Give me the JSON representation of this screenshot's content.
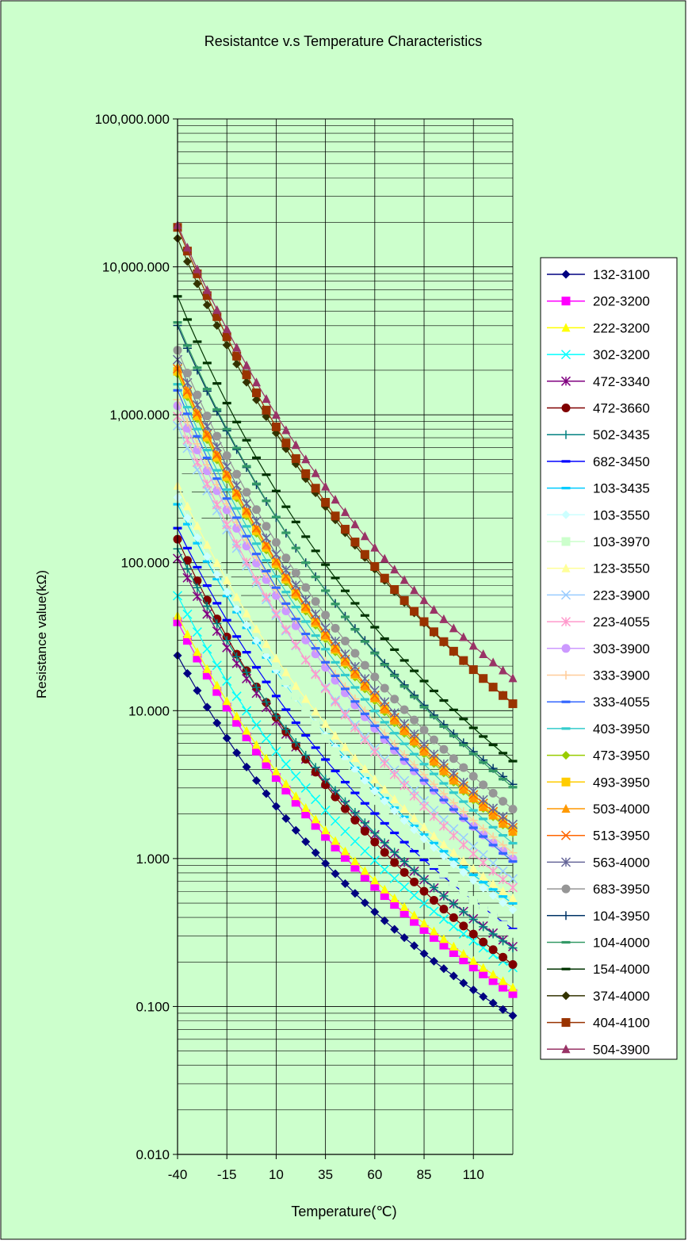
{
  "chart_data": {
    "type": "line",
    "title": "Resistantce v.s Temperature Characteristics",
    "xlabel": "Temperature(℃)",
    "ylabel": "Resistance value(kΩ)",
    "x_ticks": [
      "-40",
      "-15",
      "10",
      "35",
      "60",
      "85",
      "110"
    ],
    "y_ticks": [
      "0.010",
      "0.100",
      "1.000",
      "10.000",
      "100.000",
      "1,000.000",
      "10,000.000",
      "100,000.000"
    ],
    "xlim": [
      -40,
      130
    ],
    "ylim": [
      0.01,
      100000
    ],
    "yscale": "log",
    "grid": true,
    "legend": "right",
    "background": "#ccffcc",
    "x": [
      -40,
      -35,
      -30,
      -25,
      -20,
      -15,
      -10,
      -5,
      0,
      5,
      10,
      15,
      20,
      25,
      30,
      35,
      40,
      45,
      50,
      55,
      60,
      65,
      70,
      75,
      80,
      85,
      90,
      95,
      100,
      105,
      110,
      115,
      120,
      125,
      130
    ],
    "series": [
      {
        "name": "132-3100",
        "color": "#000080",
        "marker": "diamond",
        "r25": 1.3,
        "b": 3100
      },
      {
        "name": "202-3200",
        "color": "#ff00ff",
        "marker": "square",
        "r25": 2.0,
        "b": 3200
      },
      {
        "name": "222-3200",
        "color": "#ffff00",
        "marker": "triangle",
        "r25": 2.2,
        "b": 3200
      },
      {
        "name": "302-3200",
        "color": "#00ffff",
        "marker": "x",
        "r25": 3.0,
        "b": 3200
      },
      {
        "name": "472-3340",
        "color": "#800080",
        "marker": "star",
        "r25": 4.7,
        "b": 3340
      },
      {
        "name": "472-3660",
        "color": "#800000",
        "marker": "circle",
        "r25": 4.7,
        "b": 3660
      },
      {
        "name": "502-3435",
        "color": "#008080",
        "marker": "plus",
        "r25": 5.0,
        "b": 3435
      },
      {
        "name": "682-3450",
        "color": "#0000ff",
        "marker": "dash",
        "r25": 6.8,
        "b": 3450
      },
      {
        "name": "103-3435",
        "color": "#00ccff",
        "marker": "dash",
        "r25": 10,
        "b": 3435
      },
      {
        "name": "103-3550",
        "color": "#ccffff",
        "marker": "diamond",
        "r25": 10,
        "b": 3550
      },
      {
        "name": "103-3970",
        "color": "#ccffcc",
        "marker": "square",
        "r25": 10,
        "b": 3970
      },
      {
        "name": "123-3550",
        "color": "#ffff99",
        "marker": "triangle",
        "r25": 12,
        "b": 3550
      },
      {
        "name": "223-3900",
        "color": "#99ccff",
        "marker": "x",
        "r25": 22,
        "b": 3900
      },
      {
        "name": "223-4055",
        "color": "#ff99cc",
        "marker": "star",
        "r25": 22,
        "b": 4055
      },
      {
        "name": "303-3900",
        "color": "#cc99ff",
        "marker": "circle",
        "r25": 30,
        "b": 3900
      },
      {
        "name": "333-3900",
        "color": "#ffcc99",
        "marker": "plus",
        "r25": 33,
        "b": 3900
      },
      {
        "name": "333-4055",
        "color": "#3366ff",
        "marker": "dash",
        "r25": 33,
        "b": 4055
      },
      {
        "name": "403-3950",
        "color": "#33cccc",
        "marker": "dash",
        "r25": 40,
        "b": 3950
      },
      {
        "name": "473-3950",
        "color": "#99cc00",
        "marker": "diamond",
        "r25": 47,
        "b": 3950
      },
      {
        "name": "493-3950",
        "color": "#ffcc00",
        "marker": "square",
        "r25": 49,
        "b": 3950
      },
      {
        "name": "503-4000",
        "color": "#ff9900",
        "marker": "triangle",
        "r25": 50,
        "b": 4000
      },
      {
        "name": "513-3950",
        "color": "#ff6600",
        "marker": "x",
        "r25": 51,
        "b": 3950
      },
      {
        "name": "563-4000",
        "color": "#666699",
        "marker": "star",
        "r25": 56,
        "b": 4000
      },
      {
        "name": "683-3950",
        "color": "#969696",
        "marker": "circle",
        "r25": 68,
        "b": 3950
      },
      {
        "name": "104-3950",
        "color": "#003366",
        "marker": "plus",
        "r25": 100,
        "b": 3950
      },
      {
        "name": "104-4000",
        "color": "#339966",
        "marker": "dash",
        "r25": 100,
        "b": 4000
      },
      {
        "name": "154-4000",
        "color": "#003300",
        "marker": "dash",
        "r25": 150,
        "b": 4000
      },
      {
        "name": "374-4000",
        "color": "#333300",
        "marker": "diamond",
        "r25": 370,
        "b": 4000
      },
      {
        "name": "404-4100",
        "color": "#993300",
        "marker": "square",
        "r25": 400,
        "b": 4100
      },
      {
        "name": "504-3900",
        "color": "#993366",
        "marker": "triangle",
        "r25": 500,
        "b": 3900
      }
    ]
  }
}
